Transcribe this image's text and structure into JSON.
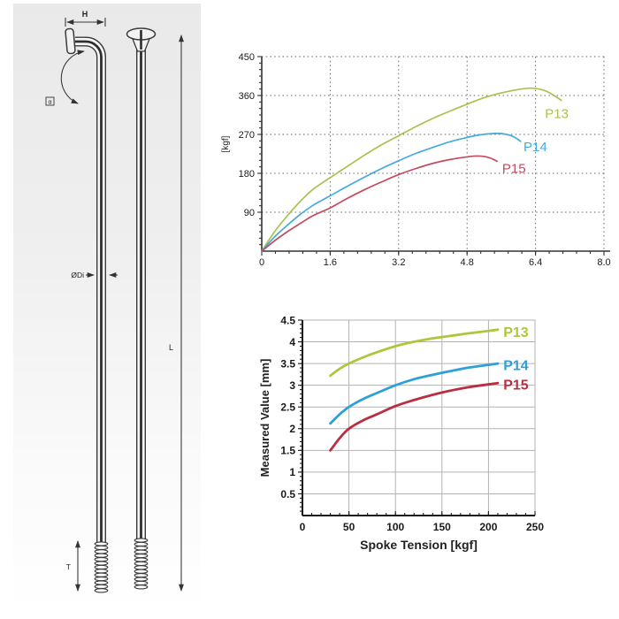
{
  "diagram": {
    "labels": {
      "head": "H",
      "angle": "α",
      "diameter": "ØDi",
      "length": "L",
      "thread": "T"
    }
  },
  "chart_data": [
    {
      "name": "spoke-strength-curve",
      "type": "line",
      "title": "",
      "xlabel": "",
      "ylabel": "[kgf]",
      "xlim": [
        0,
        8.0
      ],
      "ylim": [
        0,
        450
      ],
      "xticks": [
        0,
        1.6,
        3.2,
        4.8,
        6.4,
        8.0
      ],
      "xtick_labels": [
        "0",
        "1.6",
        "3.2",
        "4.8",
        "6.4",
        "8.0"
      ],
      "yticks": [
        90,
        180,
        270,
        360,
        450
      ],
      "ytick_labels": [
        "90",
        "180",
        "270",
        "360",
        "450"
      ],
      "x_minor_step": 0.32,
      "y_minor_step": 15,
      "grid": "dashed",
      "box": false,
      "tick_dir": "out",
      "tick_font_size": 11,
      "tick_font_weight": "normal",
      "label_font_size": 15,
      "label_font_weight": "normal",
      "series_width": 1.7,
      "series": [
        {
          "name": "P13",
          "color": "#a9c14f",
          "points": [
            [
              0,
              0
            ],
            [
              0.3,
              45
            ],
            [
              0.6,
              82
            ],
            [
              0.9,
              115
            ],
            [
              1.2,
              143
            ],
            [
              1.6,
              170
            ],
            [
              2.0,
              196
            ],
            [
              2.4,
              222
            ],
            [
              2.8,
              246
            ],
            [
              3.2,
              267
            ],
            [
              3.6,
              288
            ],
            [
              4.0,
              307
            ],
            [
              4.4,
              324
            ],
            [
              4.8,
              340
            ],
            [
              5.2,
              355
            ],
            [
              5.6,
              366
            ],
            [
              6.0,
              374
            ],
            [
              6.3,
              377
            ],
            [
              6.6,
              372
            ],
            [
              6.8,
              362
            ],
            [
              7.0,
              349
            ]
          ],
          "label": {
            "x": 6.62,
            "y": 318
          }
        },
        {
          "name": "P14",
          "color": "#45aadc",
          "points": [
            [
              0,
              0
            ],
            [
              0.3,
              33
            ],
            [
              0.6,
              60
            ],
            [
              0.9,
              85
            ],
            [
              1.2,
              106
            ],
            [
              1.6,
              128
            ],
            [
              2.0,
              150
            ],
            [
              2.4,
              171
            ],
            [
              2.8,
              191
            ],
            [
              3.2,
              209
            ],
            [
              3.6,
              226
            ],
            [
              4.0,
              240
            ],
            [
              4.4,
              253
            ],
            [
              4.8,
              263
            ],
            [
              5.1,
              269
            ],
            [
              5.4,
              272
            ],
            [
              5.6,
              272
            ],
            [
              5.8,
              268
            ],
            [
              5.95,
              261
            ],
            [
              6.05,
              254
            ]
          ],
          "label": {
            "x": 6.12,
            "y": 241
          }
        },
        {
          "name": "P15",
          "color": "#c44a5e",
          "points": [
            [
              0,
              0
            ],
            [
              0.3,
              24
            ],
            [
              0.6,
              45
            ],
            [
              0.9,
              64
            ],
            [
              1.2,
              82
            ],
            [
              1.6,
              100
            ],
            [
              2.0,
              122
            ],
            [
              2.4,
              142
            ],
            [
              2.8,
              160
            ],
            [
              3.2,
              177
            ],
            [
              3.6,
              191
            ],
            [
              4.0,
              203
            ],
            [
              4.4,
              212
            ],
            [
              4.8,
              218
            ],
            [
              5.0,
              220
            ],
            [
              5.2,
              219
            ],
            [
              5.35,
              215
            ],
            [
              5.5,
              208
            ]
          ],
          "label": {
            "x": 5.62,
            "y": 191
          }
        }
      ]
    },
    {
      "name": "spoke-tension-elongation",
      "type": "line",
      "title": "",
      "xlabel": "Spoke Tension [kgf]",
      "ylabel": "Measured Value [mm]",
      "xlim": [
        0,
        250
      ],
      "ylim": [
        0,
        4.5
      ],
      "xticks": [
        0,
        50,
        100,
        150,
        200,
        250
      ],
      "xtick_labels": [
        "0",
        "50",
        "100",
        "150",
        "200",
        "250"
      ],
      "yticks": [
        0.5,
        1,
        1.5,
        2,
        2.5,
        3,
        3.5,
        4,
        4.5
      ],
      "ytick_labels": [
        "0.5",
        "1",
        "1.5",
        "2",
        "2.5",
        "3",
        "3.5",
        "4",
        "4.5"
      ],
      "x_minor_step": 10,
      "y_minor_step": 0.1,
      "grid": "solid",
      "box": true,
      "tick_dir": "in",
      "tick_font_size": 12,
      "tick_font_weight": "bold",
      "label_font_size": 16,
      "label_font_weight": "bold",
      "series_width": 2.8,
      "series": [
        {
          "name": "P13",
          "color": "#aec63e",
          "points": [
            [
              30,
              3.22
            ],
            [
              40,
              3.38
            ],
            [
              50,
              3.5
            ],
            [
              65,
              3.64
            ],
            [
              80,
              3.76
            ],
            [
              100,
              3.9
            ],
            [
              120,
              4.0
            ],
            [
              140,
              4.08
            ],
            [
              160,
              4.14
            ],
            [
              180,
              4.2
            ],
            [
              200,
              4.25
            ],
            [
              210,
              4.28
            ]
          ],
          "label": {
            "x": 216,
            "y": 4.22
          }
        },
        {
          "name": "P14",
          "color": "#2da0d8",
          "points": [
            [
              30,
              2.12
            ],
            [
              40,
              2.33
            ],
            [
              50,
              2.5
            ],
            [
              65,
              2.68
            ],
            [
              80,
              2.82
            ],
            [
              100,
              3.0
            ],
            [
              120,
              3.14
            ],
            [
              140,
              3.24
            ],
            [
              160,
              3.33
            ],
            [
              180,
              3.41
            ],
            [
              200,
              3.47
            ],
            [
              210,
              3.5
            ]
          ],
          "label": {
            "x": 216,
            "y": 3.45
          }
        },
        {
          "name": "P15",
          "color": "#b92e40",
          "points": [
            [
              30,
              1.5
            ],
            [
              40,
              1.78
            ],
            [
              50,
              2.0
            ],
            [
              65,
              2.19
            ],
            [
              80,
              2.33
            ],
            [
              100,
              2.52
            ],
            [
              120,
              2.66
            ],
            [
              140,
              2.78
            ],
            [
              160,
              2.88
            ],
            [
              180,
              2.96
            ],
            [
              200,
              3.02
            ],
            [
              210,
              3.05
            ]
          ],
          "label": {
            "x": 216,
            "y": 3.0
          }
        }
      ]
    }
  ]
}
